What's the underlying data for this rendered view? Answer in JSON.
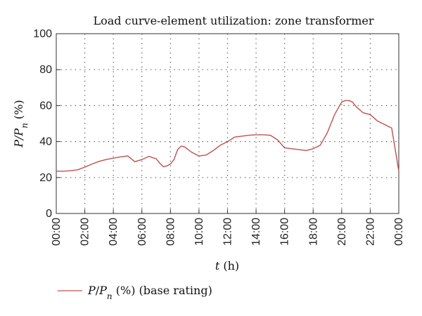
{
  "chart_data": {
    "type": "line",
    "title": "Load curve-element utilization: zone transformer",
    "xlabel": "t (h)",
    "ylabel": "P/Pn (%)",
    "ylim": [
      0,
      100
    ],
    "yticks": [
      0,
      20,
      40,
      60,
      80,
      100
    ],
    "xlim_hours": [
      0,
      24
    ],
    "xticks": [
      "00:00",
      "02:00",
      "04:00",
      "06:00",
      "08:00",
      "10:00",
      "12:00",
      "14:00",
      "16:00",
      "18:00",
      "20:00",
      "22:00",
      "00:00"
    ],
    "grid": true,
    "legend_position": "bottom-left",
    "line_color": "#c0504d",
    "series": [
      {
        "name": "P/Pn (%) (base rating)",
        "x": [
          "00:00",
          "00:30",
          "01:00",
          "01:30",
          "02:00",
          "02:30",
          "03:00",
          "03:30",
          "04:00",
          "04:30",
          "05:00",
          "05:15",
          "05:30",
          "06:00",
          "06:30",
          "06:45",
          "07:00",
          "07:15",
          "07:30",
          "07:45",
          "08:00",
          "08:15",
          "08:30",
          "08:45",
          "09:00",
          "09:30",
          "10:00",
          "10:30",
          "11:00",
          "11:30",
          "12:00",
          "12:30",
          "13:00",
          "13:30",
          "14:00",
          "14:30",
          "15:00",
          "15:30",
          "16:00",
          "16:30",
          "17:00",
          "17:30",
          "18:00",
          "18:30",
          "19:00",
          "19:30",
          "20:00",
          "20:15",
          "20:30",
          "20:45",
          "21:00",
          "21:30",
          "22:00",
          "22:30",
          "23:00",
          "23:30",
          "24:00"
        ],
        "values": [
          23.5,
          23.5,
          23.8,
          24.3,
          25.8,
          27.5,
          29.0,
          30.0,
          30.8,
          31.5,
          32.0,
          30.5,
          28.8,
          30.0,
          31.8,
          31.0,
          30.5,
          28.0,
          26.0,
          26.5,
          27.5,
          30.0,
          35.5,
          37.5,
          37.0,
          34.0,
          32.0,
          32.5,
          35.0,
          38.0,
          40.0,
          42.5,
          43.0,
          43.5,
          43.8,
          43.8,
          43.5,
          41.0,
          36.5,
          36.0,
          35.5,
          35.0,
          36.0,
          38.0,
          45.0,
          55.0,
          62.0,
          62.8,
          62.8,
          62.0,
          59.5,
          56.0,
          55.0,
          51.5,
          49.5,
          47.5,
          23.5
        ]
      }
    ]
  }
}
